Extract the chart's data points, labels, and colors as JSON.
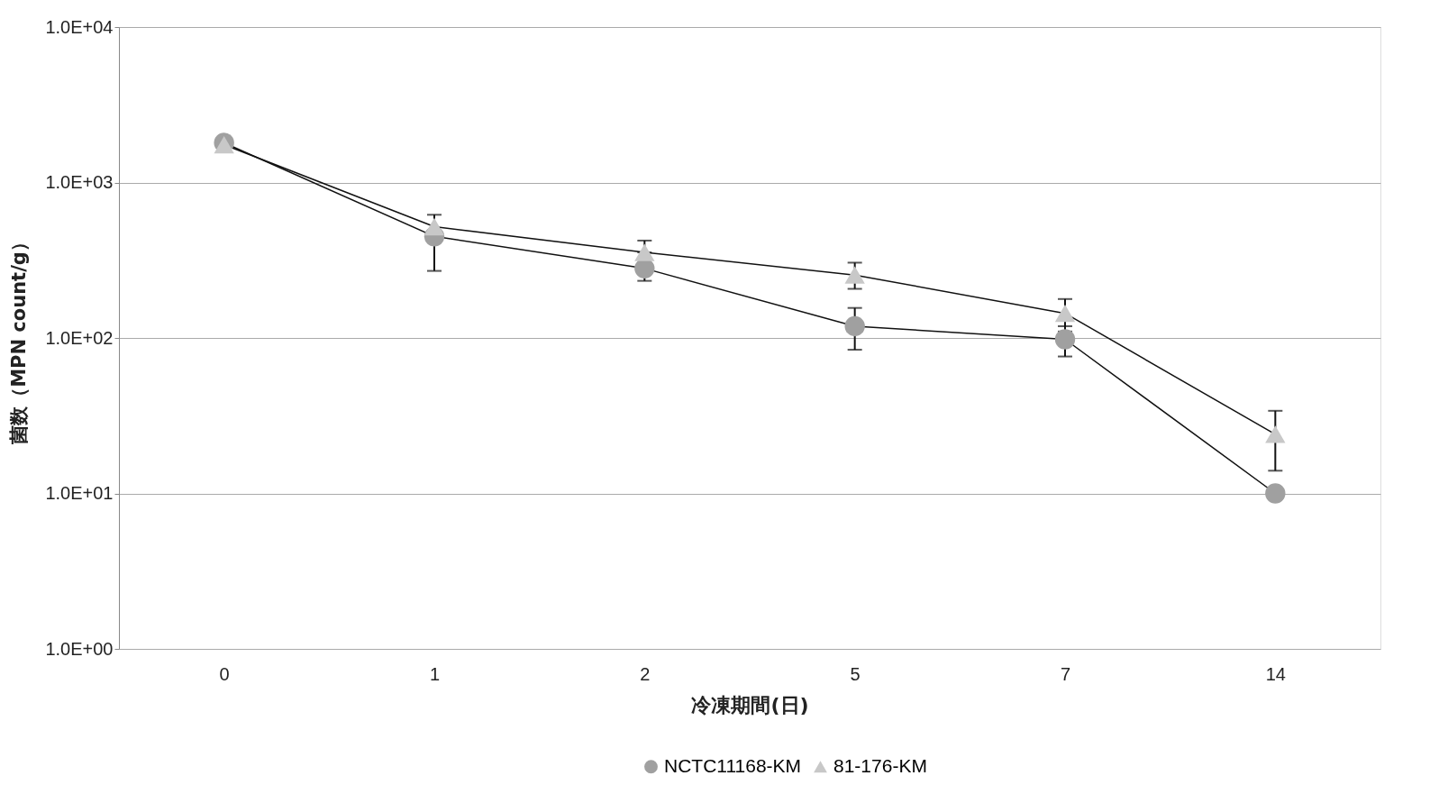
{
  "chart_data": {
    "type": "line",
    "xlabel": "冷凍期間(日)",
    "ylabel": "菌数（MPN count/g）",
    "categories": [
      "0",
      "1",
      "2",
      "5",
      "7",
      "14"
    ],
    "series": [
      {
        "name": "NCTC11168-KM",
        "color": "#a0a0a0",
        "marker": "circle",
        "values": [
          1800,
          450,
          280,
          119,
          98,
          10
        ],
        "errors": [
          null,
          [
            270,
            620
          ],
          [
            233,
            323
          ],
          [
            84,
            156
          ],
          [
            76,
            119
          ],
          null
        ]
      },
      {
        "name": "81-176-KM",
        "color": "#c8c8c8",
        "marker": "triangle",
        "values": [
          1750,
          520,
          355,
          254,
          144,
          24
        ],
        "errors": [
          null,
          null,
          [
            355,
            423
          ],
          [
            207,
            305
          ],
          [
            110,
            178
          ],
          [
            14,
            34
          ]
        ]
      }
    ],
    "log": true,
    "ylim": [
      1,
      10000
    ],
    "yticks": [
      {
        "value": 1,
        "label": "1.0E+00"
      },
      {
        "value": 10,
        "label": "1.0E+01"
      },
      {
        "value": 100,
        "label": "1.0E+02"
      },
      {
        "value": 1000,
        "label": "1.0E+03"
      },
      {
        "value": 10000,
        "label": "1.0E+04"
      }
    ],
    "grid": "y",
    "legend": "bottom",
    "line_style": "solid"
  }
}
